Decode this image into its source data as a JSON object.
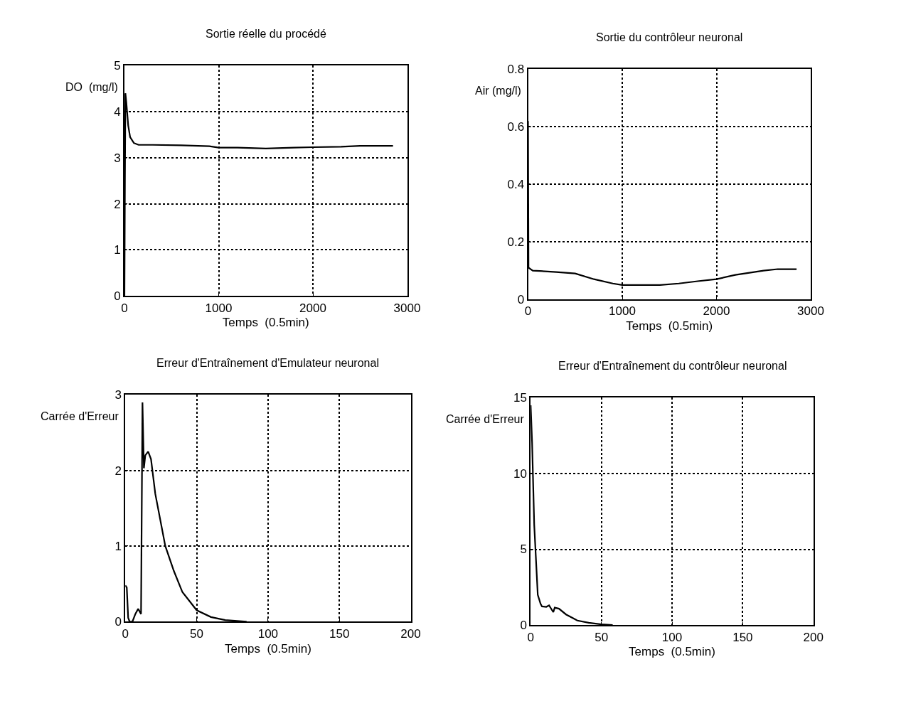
{
  "chart_data": [
    {
      "type": "line",
      "title": "Sortie réelle du procédé",
      "xlabel": "Temps  (0.5min)",
      "ylabel": "DO  (mg/l)",
      "x": [
        0,
        5,
        10,
        20,
        40,
        60,
        100,
        150,
        300,
        600,
        900,
        1000,
        1200,
        1500,
        1800,
        2000,
        2300,
        2500,
        2850
      ],
      "series": [
        {
          "color": "#000000",
          "values": [
            0,
            2.5,
            4.4,
            4.2,
            3.7,
            3.45,
            3.32,
            3.28,
            3.28,
            3.27,
            3.25,
            3.22,
            3.22,
            3.2,
            3.22,
            3.23,
            3.24,
            3.26,
            3.26
          ]
        }
      ],
      "xlim": [
        0,
        3000
      ],
      "xticks": [
        0,
        1000,
        2000,
        3000
      ],
      "ylim": [
        0,
        5
      ],
      "yticks": [
        0,
        1,
        2,
        3,
        4,
        5
      ],
      "grid": true,
      "line_style": "solid"
    },
    {
      "type": "line",
      "title": "Sortie du contrôleur neuronal",
      "xlabel": "Temps  (0.5min)",
      "ylabel": "Air (mg/l)",
      "x": [
        0,
        5,
        50,
        300,
        500,
        700,
        900,
        1000,
        1200,
        1400,
        1600,
        1800,
        2000,
        2200,
        2500,
        2650,
        2850
      ],
      "series": [
        {
          "color": "#000000",
          "values": [
            0.62,
            0.11,
            0.1,
            0.095,
            0.09,
            0.07,
            0.055,
            0.05,
            0.05,
            0.05,
            0.055,
            0.063,
            0.07,
            0.085,
            0.1,
            0.105,
            0.105
          ]
        }
      ],
      "xlim": [
        0,
        3000
      ],
      "xticks": [
        0,
        1000,
        2000,
        3000
      ],
      "ylim": [
        0,
        0.8
      ],
      "yticks": [
        0,
        0.2,
        0.4,
        0.6,
        0.8
      ],
      "grid": true,
      "line_style": "solid"
    },
    {
      "type": "line",
      "title": "Erreur d'Entraînement d'Emulateur neuronal",
      "xlabel": "Temps  (0.5min)",
      "ylabel": "Carrée d'Erreur",
      "x": [
        0,
        1,
        2,
        3,
        5,
        7,
        9,
        11,
        12,
        13,
        14,
        16,
        18,
        21,
        28,
        34,
        40,
        50,
        60,
        70,
        85
      ],
      "series": [
        {
          "color": "#000000",
          "values": [
            0.48,
            0.45,
            0.05,
            0,
            0,
            0.1,
            0.17,
            0.1,
            2.9,
            2.03,
            2.2,
            2.25,
            2.15,
            1.69,
            1.0,
            0.67,
            0.39,
            0.15,
            0.06,
            0.02,
            0
          ]
        }
      ],
      "xlim": [
        0,
        200
      ],
      "xticks": [
        0,
        50,
        100,
        150,
        200
      ],
      "ylim": [
        0,
        3
      ],
      "yticks": [
        0,
        1,
        2,
        3
      ],
      "grid": true,
      "line_style": "solid"
    },
    {
      "type": "line",
      "title": "Erreur d'Entraînement du contrôleur neuronal",
      "xlabel": "Temps  (0.5min)",
      "ylabel": "Carrée d'Erreur",
      "x": [
        0,
        1,
        2.5,
        5,
        7,
        8,
        11,
        13,
        16,
        17,
        20,
        25,
        30,
        33,
        41,
        50,
        58
      ],
      "series": [
        {
          "color": "#000000",
          "values": [
            14.5,
            12,
            6.6,
            2.0,
            1.4,
            1.23,
            1.2,
            1.3,
            0.85,
            1.15,
            1.08,
            0.7,
            0.45,
            0.3,
            0.15,
            0.05,
            0
          ]
        }
      ],
      "xlim": [
        0,
        200
      ],
      "xticks": [
        0,
        50,
        100,
        150,
        200
      ],
      "ylim": [
        0,
        15
      ],
      "yticks": [
        0,
        5,
        10,
        15
      ],
      "grid": true,
      "line_style": "solid"
    }
  ]
}
